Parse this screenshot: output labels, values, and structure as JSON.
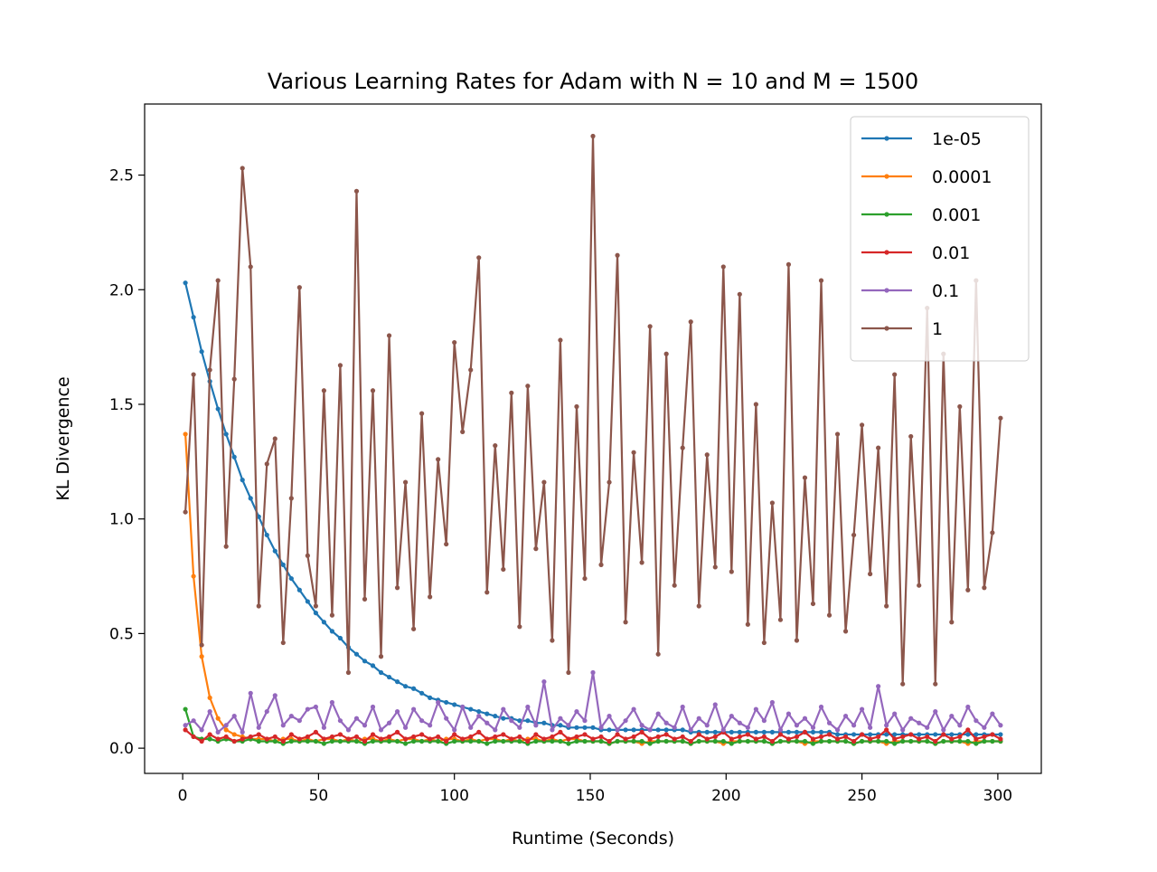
{
  "chart_data": {
    "type": "line",
    "title": "Various Learning Rates for Adam with N = 10 and M = 1500",
    "x_label": "Runtime (Seconds)",
    "y_label": "KL Divergence",
    "x": [
      1,
      4,
      7,
      10,
      13,
      16,
      19,
      22,
      25,
      28,
      31,
      34,
      37,
      40,
      43,
      46,
      49,
      52,
      55,
      58,
      61,
      64,
      67,
      70,
      73,
      76,
      79,
      82,
      85,
      88,
      91,
      94,
      97,
      100,
      103,
      106,
      109,
      112,
      115,
      118,
      121,
      124,
      127,
      130,
      133,
      136,
      139,
      142,
      145,
      148,
      151,
      154,
      157,
      160,
      163,
      166,
      169,
      172,
      175,
      178,
      181,
      184,
      187,
      190,
      193,
      196,
      199,
      202,
      205,
      208,
      211,
      214,
      217,
      220,
      223,
      226,
      229,
      232,
      235,
      238,
      241,
      244,
      247,
      250,
      253,
      256,
      259,
      262,
      265,
      268,
      271,
      274,
      277,
      280,
      283,
      286,
      289,
      292,
      295,
      298,
      301
    ],
    "series": [
      {
        "name": "1e-05",
        "color": "#1f77b4",
        "values": [
          2.03,
          1.88,
          1.73,
          1.6,
          1.48,
          1.37,
          1.27,
          1.17,
          1.09,
          1.01,
          0.93,
          0.86,
          0.8,
          0.74,
          0.69,
          0.64,
          0.59,
          0.55,
          0.51,
          0.48,
          0.44,
          0.41,
          0.38,
          0.36,
          0.33,
          0.31,
          0.29,
          0.27,
          0.26,
          0.24,
          0.22,
          0.21,
          0.2,
          0.19,
          0.18,
          0.17,
          0.16,
          0.15,
          0.14,
          0.13,
          0.13,
          0.12,
          0.12,
          0.11,
          0.11,
          0.1,
          0.1,
          0.09,
          0.09,
          0.09,
          0.09,
          0.08,
          0.08,
          0.08,
          0.08,
          0.08,
          0.08,
          0.08,
          0.08,
          0.08,
          0.08,
          0.08,
          0.07,
          0.07,
          0.07,
          0.07,
          0.07,
          0.07,
          0.07,
          0.07,
          0.07,
          0.07,
          0.07,
          0.07,
          0.07,
          0.07,
          0.07,
          0.07,
          0.07,
          0.07,
          0.06,
          0.06,
          0.06,
          0.06,
          0.06,
          0.06,
          0.06,
          0.06,
          0.06,
          0.06,
          0.06,
          0.06,
          0.06,
          0.06,
          0.06,
          0.06,
          0.06,
          0.06,
          0.06,
          0.06,
          0.06
        ]
      },
      {
        "name": "0.0001",
        "color": "#ff7f0e",
        "values": [
          1.37,
          0.75,
          0.4,
          0.22,
          0.13,
          0.08,
          0.06,
          0.05,
          0.04,
          0.04,
          0.04,
          0.03,
          0.04,
          0.04,
          0.03,
          0.04,
          0.03,
          0.04,
          0.04,
          0.03,
          0.04,
          0.03,
          0.04,
          0.04,
          0.03,
          0.04,
          0.03,
          0.04,
          0.04,
          0.03,
          0.04,
          0.03,
          0.04,
          0.04,
          0.03,
          0.04,
          0.03,
          0.04,
          0.04,
          0.03,
          0.04,
          0.03,
          0.04,
          0.04,
          0.03,
          0.04,
          0.03,
          0.04,
          0.04,
          0.03,
          0.03,
          0.03,
          0.02,
          0.03,
          0.03,
          0.03,
          0.02,
          0.03,
          0.03,
          0.03,
          0.03,
          0.03,
          0.02,
          0.03,
          0.03,
          0.03,
          0.02,
          0.03,
          0.03,
          0.03,
          0.03,
          0.03,
          0.02,
          0.03,
          0.03,
          0.03,
          0.02,
          0.03,
          0.03,
          0.03,
          0.03,
          0.03,
          0.02,
          0.03,
          0.03,
          0.03,
          0.02,
          0.03,
          0.03,
          0.03,
          0.03,
          0.03,
          0.02,
          0.03,
          0.03,
          0.03,
          0.02,
          0.03,
          0.03,
          0.03,
          0.03
        ]
      },
      {
        "name": "0.001",
        "color": "#2ca02c",
        "values": [
          0.17,
          0.05,
          0.04,
          0.04,
          0.03,
          0.04,
          0.03,
          0.03,
          0.04,
          0.03,
          0.03,
          0.03,
          0.02,
          0.03,
          0.03,
          0.03,
          0.03,
          0.02,
          0.03,
          0.03,
          0.03,
          0.03,
          0.02,
          0.03,
          0.03,
          0.03,
          0.03,
          0.02,
          0.03,
          0.03,
          0.03,
          0.03,
          0.02,
          0.03,
          0.03,
          0.03,
          0.03,
          0.02,
          0.03,
          0.03,
          0.03,
          0.03,
          0.02,
          0.03,
          0.03,
          0.03,
          0.03,
          0.02,
          0.03,
          0.03,
          0.03,
          0.03,
          0.02,
          0.03,
          0.03,
          0.03,
          0.03,
          0.02,
          0.03,
          0.03,
          0.03,
          0.03,
          0.02,
          0.03,
          0.03,
          0.03,
          0.03,
          0.02,
          0.03,
          0.03,
          0.03,
          0.03,
          0.02,
          0.03,
          0.03,
          0.03,
          0.03,
          0.02,
          0.03,
          0.03,
          0.03,
          0.03,
          0.02,
          0.03,
          0.03,
          0.03,
          0.03,
          0.02,
          0.03,
          0.03,
          0.03,
          0.03,
          0.02,
          0.03,
          0.03,
          0.03,
          0.03,
          0.02,
          0.03,
          0.03,
          0.03
        ]
      },
      {
        "name": "0.01",
        "color": "#d62728",
        "values": [
          0.08,
          0.05,
          0.03,
          0.06,
          0.04,
          0.05,
          0.03,
          0.04,
          0.05,
          0.06,
          0.04,
          0.05,
          0.03,
          0.06,
          0.04,
          0.05,
          0.07,
          0.04,
          0.05,
          0.06,
          0.04,
          0.05,
          0.03,
          0.06,
          0.04,
          0.05,
          0.07,
          0.04,
          0.05,
          0.06,
          0.04,
          0.05,
          0.03,
          0.06,
          0.04,
          0.05,
          0.07,
          0.04,
          0.05,
          0.06,
          0.04,
          0.05,
          0.03,
          0.06,
          0.04,
          0.05,
          0.07,
          0.04,
          0.05,
          0.06,
          0.04,
          0.05,
          0.03,
          0.06,
          0.04,
          0.05,
          0.07,
          0.04,
          0.05,
          0.06,
          0.04,
          0.05,
          0.03,
          0.06,
          0.04,
          0.05,
          0.07,
          0.04,
          0.05,
          0.06,
          0.04,
          0.05,
          0.03,
          0.06,
          0.04,
          0.05,
          0.07,
          0.04,
          0.05,
          0.06,
          0.04,
          0.05,
          0.03,
          0.06,
          0.04,
          0.05,
          0.08,
          0.04,
          0.05,
          0.06,
          0.04,
          0.05,
          0.03,
          0.06,
          0.04,
          0.05,
          0.08,
          0.04,
          0.05,
          0.06,
          0.04
        ]
      },
      {
        "name": "0.1",
        "color": "#9467bd",
        "values": [
          0.1,
          0.12,
          0.08,
          0.16,
          0.07,
          0.1,
          0.14,
          0.07,
          0.24,
          0.09,
          0.16,
          0.23,
          0.1,
          0.14,
          0.12,
          0.17,
          0.18,
          0.09,
          0.2,
          0.12,
          0.08,
          0.13,
          0.1,
          0.18,
          0.08,
          0.11,
          0.16,
          0.09,
          0.17,
          0.12,
          0.1,
          0.2,
          0.13,
          0.08,
          0.18,
          0.09,
          0.14,
          0.11,
          0.08,
          0.17,
          0.12,
          0.09,
          0.18,
          0.1,
          0.29,
          0.08,
          0.13,
          0.1,
          0.16,
          0.12,
          0.33,
          0.09,
          0.14,
          0.08,
          0.12,
          0.17,
          0.1,
          0.08,
          0.15,
          0.11,
          0.09,
          0.18,
          0.08,
          0.13,
          0.1,
          0.19,
          0.08,
          0.14,
          0.11,
          0.09,
          0.17,
          0.12,
          0.2,
          0.08,
          0.15,
          0.1,
          0.13,
          0.09,
          0.18,
          0.11,
          0.08,
          0.14,
          0.1,
          0.17,
          0.09,
          0.27,
          0.1,
          0.15,
          0.08,
          0.13,
          0.11,
          0.09,
          0.16,
          0.08,
          0.14,
          0.1,
          0.18,
          0.12,
          0.09,
          0.15,
          0.1
        ]
      },
      {
        "name": "1",
        "color": "#8c564b",
        "values": [
          1.03,
          1.63,
          0.45,
          1.65,
          2.04,
          0.88,
          1.61,
          2.53,
          2.1,
          0.62,
          1.24,
          1.35,
          0.46,
          1.09,
          2.01,
          0.84,
          0.62,
          1.56,
          0.58,
          1.67,
          0.33,
          2.43,
          0.65,
          1.56,
          0.4,
          1.8,
          0.7,
          1.16,
          0.52,
          1.46,
          0.66,
          1.26,
          0.89,
          1.77,
          1.38,
          1.65,
          2.14,
          0.68,
          1.32,
          0.78,
          1.55,
          0.53,
          1.58,
          0.87,
          1.16,
          0.47,
          1.78,
          0.33,
          1.49,
          0.74,
          2.67,
          0.8,
          1.16,
          2.15,
          0.55,
          1.29,
          0.81,
          1.84,
          0.41,
          1.72,
          0.71,
          1.31,
          1.86,
          0.62,
          1.28,
          0.79,
          2.1,
          0.77,
          1.98,
          0.54,
          1.5,
          0.46,
          1.07,
          0.56,
          2.11,
          0.47,
          1.18,
          0.63,
          2.04,
          0.58,
          1.37,
          0.51,
          0.93,
          1.41,
          0.76,
          1.31,
          0.62,
          1.63,
          0.28,
          1.36,
          0.71,
          1.92,
          0.28,
          1.72,
          0.55,
          1.49,
          0.69,
          2.04,
          0.7,
          0.94,
          1.44
        ]
      }
    ],
    "xlim": [
      -14,
      316
    ],
    "ylim": [
      -0.11,
      2.81
    ],
    "xticks": [
      0,
      50,
      100,
      150,
      200,
      250,
      300
    ],
    "yticks": [
      {
        "value": 0,
        "label": "0.0"
      },
      0.5,
      {
        "value": 1,
        "label": "1.0"
      },
      1.5,
      {
        "value": 2,
        "label": "2.0"
      },
      2.5
    ],
    "legend": "upper right",
    "markers": true
  }
}
